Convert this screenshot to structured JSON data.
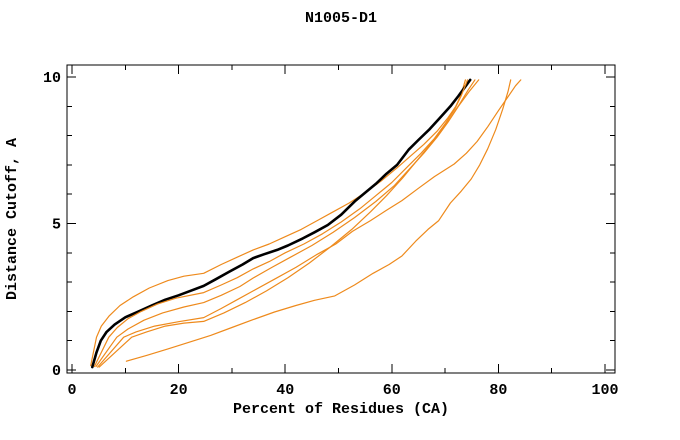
{
  "chart_data": {
    "type": "line",
    "title": "N1005-D1",
    "xlabel": "Percent of Residues (CA)",
    "ylabel": "Distance Cutoff, A",
    "xlim": [
      0,
      100
    ],
    "ylim": [
      0,
      10
    ],
    "x_major_ticks": [
      0,
      20,
      40,
      60,
      80,
      100
    ],
    "x_minor_ticks": [
      10,
      30,
      50,
      70,
      90
    ],
    "y_major_ticks": [
      0,
      5,
      10
    ],
    "y_minor_ticks": [
      1,
      2,
      3,
      4,
      6,
      7,
      8,
      9
    ],
    "grid": false,
    "legend_position": "none",
    "frame": "box-with-inward-ticks",
    "colors": {
      "highlight": "#000000",
      "default_series": "#ee8a1c"
    },
    "series": [
      {
        "name": "model-orange-3",
        "color": "#ee8a1c",
        "width": 1.2,
        "points": [
          [
            4.5,
            0.12
          ],
          [
            8.4,
            1.12
          ],
          [
            10.5,
            1.4
          ],
          [
            13.5,
            1.7
          ],
          [
            17,
            1.95
          ],
          [
            21,
            2.15
          ],
          [
            24.7,
            2.3
          ],
          [
            28,
            2.55
          ],
          [
            31.5,
            2.85
          ],
          [
            34,
            3.14
          ],
          [
            37.5,
            3.5
          ],
          [
            41,
            3.85
          ],
          [
            45,
            4.25
          ],
          [
            49,
            4.7
          ],
          [
            53,
            5.2
          ],
          [
            57,
            5.75
          ],
          [
            60.5,
            6.3
          ],
          [
            63.5,
            6.9
          ],
          [
            66,
            7.4
          ],
          [
            68.5,
            7.95
          ],
          [
            70.5,
            8.45
          ],
          [
            72.5,
            9.0
          ],
          [
            74.5,
            9.5
          ],
          [
            76.3,
            9.9
          ]
        ]
      },
      {
        "name": "model-orange-4",
        "color": "#ee8a1c",
        "width": 1.2,
        "points": [
          [
            4.8,
            0.1
          ],
          [
            9.7,
            1.12
          ],
          [
            12,
            1.3
          ],
          [
            15.5,
            1.5
          ],
          [
            20,
            1.65
          ],
          [
            24.7,
            1.79
          ],
          [
            28,
            2.1
          ],
          [
            31,
            2.4
          ],
          [
            34,
            2.7
          ],
          [
            38,
            3.1
          ],
          [
            42,
            3.5
          ],
          [
            46,
            3.95
          ],
          [
            49.5,
            4.3
          ],
          [
            52.6,
            4.73
          ],
          [
            56,
            5.1
          ],
          [
            59,
            5.45
          ],
          [
            61.9,
            5.78
          ],
          [
            65,
            6.2
          ],
          [
            68,
            6.6
          ],
          [
            71.7,
            7.03
          ],
          [
            74,
            7.4
          ],
          [
            76,
            7.8
          ],
          [
            78,
            8.3
          ],
          [
            80,
            8.85
          ],
          [
            81.7,
            9.3
          ],
          [
            83.2,
            9.7
          ],
          [
            84.2,
            9.9
          ]
        ]
      },
      {
        "name": "model-orange-5",
        "color": "#ee8a1c",
        "width": 1.2,
        "points": [
          [
            5.1,
            0.1
          ],
          [
            11.2,
            1.12
          ],
          [
            14,
            1.3
          ],
          [
            17.5,
            1.5
          ],
          [
            21,
            1.6
          ],
          [
            24.7,
            1.66
          ],
          [
            28.5,
            1.95
          ],
          [
            32.5,
            2.3
          ],
          [
            36.5,
            2.7
          ],
          [
            40.5,
            3.15
          ],
          [
            44.5,
            3.65
          ],
          [
            48.5,
            4.2
          ],
          [
            52.5,
            4.8
          ],
          [
            56,
            5.4
          ],
          [
            59,
            5.95
          ],
          [
            62,
            6.55
          ],
          [
            64.5,
            7.1
          ],
          [
            67,
            7.65
          ],
          [
            69,
            8.1
          ],
          [
            71,
            8.6
          ],
          [
            72.8,
            9.1
          ],
          [
            74.3,
            9.55
          ],
          [
            75.6,
            9.9
          ]
        ]
      },
      {
        "name": "model-orange-6",
        "color": "#ee8a1c",
        "width": 1.2,
        "points": [
          [
            10.2,
            0.3
          ],
          [
            14,
            0.5
          ],
          [
            18,
            0.72
          ],
          [
            22,
            0.95
          ],
          [
            26,
            1.18
          ],
          [
            30,
            1.45
          ],
          [
            34,
            1.72
          ],
          [
            38,
            1.98
          ],
          [
            42,
            2.2
          ],
          [
            45.5,
            2.38
          ],
          [
            49.3,
            2.53
          ],
          [
            53,
            2.9
          ],
          [
            56.5,
            3.3
          ],
          [
            59.5,
            3.6
          ],
          [
            61.9,
            3.89
          ],
          [
            64.5,
            4.4
          ],
          [
            66.8,
            4.8
          ],
          [
            68.8,
            5.1
          ],
          [
            71,
            5.7
          ],
          [
            73,
            6.1
          ],
          [
            74.9,
            6.52
          ],
          [
            76.5,
            7.0
          ],
          [
            78,
            7.55
          ],
          [
            79.5,
            8.2
          ],
          [
            80.8,
            8.9
          ],
          [
            81.8,
            9.5
          ],
          [
            82.3,
            9.9
          ]
        ]
      },
      {
        "name": "model-orange-1",
        "color": "#ee8a1c",
        "width": 1.2,
        "points": [
          [
            3.5,
            0.15
          ],
          [
            4.6,
            1.12
          ],
          [
            5.5,
            1.5
          ],
          [
            7,
            1.85
          ],
          [
            9,
            2.2
          ],
          [
            11.5,
            2.5
          ],
          [
            14.5,
            2.8
          ],
          [
            18,
            3.05
          ],
          [
            21,
            3.2
          ],
          [
            24.7,
            3.3
          ],
          [
            28,
            3.6
          ],
          [
            31,
            3.85
          ],
          [
            34,
            4.1
          ],
          [
            37,
            4.3
          ],
          [
            40,
            4.55
          ],
          [
            43,
            4.8
          ],
          [
            46,
            5.1
          ],
          [
            49,
            5.4
          ],
          [
            52,
            5.7
          ],
          [
            55,
            6.05
          ],
          [
            58,
            6.45
          ],
          [
            61,
            6.9
          ],
          [
            63.5,
            7.3
          ],
          [
            66,
            7.7
          ],
          [
            68.5,
            8.15
          ],
          [
            70.5,
            8.6
          ],
          [
            72,
            9.0
          ],
          [
            73,
            9.4
          ],
          [
            73.8,
            9.9
          ]
        ]
      },
      {
        "name": "model-highlighted",
        "color": "#000000",
        "width": 2.6,
        "points": [
          [
            3.8,
            0.1
          ],
          [
            4.6,
            0.6
          ],
          [
            5.4,
            1.0
          ],
          [
            6.5,
            1.3
          ],
          [
            8,
            1.55
          ],
          [
            10,
            1.8
          ],
          [
            12.5,
            2.0
          ],
          [
            15,
            2.2
          ],
          [
            17.5,
            2.4
          ],
          [
            20,
            2.55
          ],
          [
            22.5,
            2.72
          ],
          [
            24.7,
            2.87
          ],
          [
            27,
            3.1
          ],
          [
            29.5,
            3.35
          ],
          [
            32,
            3.6
          ],
          [
            34,
            3.82
          ],
          [
            36,
            3.95
          ],
          [
            38.5,
            4.1
          ],
          [
            40.5,
            4.25
          ],
          [
            43.3,
            4.49
          ],
          [
            45.5,
            4.7
          ],
          [
            48,
            4.95
          ],
          [
            50.5,
            5.3
          ],
          [
            53.2,
            5.78
          ],
          [
            55,
            6.05
          ],
          [
            57,
            6.35
          ],
          [
            59,
            6.7
          ],
          [
            61,
            7.0
          ],
          [
            63.2,
            7.53
          ],
          [
            65,
            7.85
          ],
          [
            67,
            8.2
          ],
          [
            69,
            8.6
          ],
          [
            71,
            9.0
          ],
          [
            72.5,
            9.35
          ],
          [
            73.7,
            9.65
          ],
          [
            74.7,
            9.9
          ]
        ]
      },
      {
        "name": "model-orange-2",
        "color": "#ee8a1c",
        "width": 1.2,
        "points": [
          [
            4.2,
            0.12
          ],
          [
            6.9,
            1.12
          ],
          [
            8.5,
            1.45
          ],
          [
            10.5,
            1.75
          ],
          [
            13,
            2.0
          ],
          [
            16,
            2.25
          ],
          [
            19.5,
            2.45
          ],
          [
            24.7,
            2.64
          ],
          [
            28,
            2.9
          ],
          [
            31,
            3.15
          ],
          [
            34,
            3.45
          ],
          [
            37,
            3.7
          ],
          [
            40,
            4.0
          ],
          [
            43.5,
            4.3
          ],
          [
            47,
            4.65
          ],
          [
            50.5,
            5.05
          ],
          [
            54,
            5.5
          ],
          [
            57,
            5.95
          ],
          [
            60,
            6.4
          ],
          [
            63,
            6.95
          ],
          [
            65.5,
            7.4
          ],
          [
            68,
            7.9
          ],
          [
            70,
            8.4
          ],
          [
            71.8,
            8.9
          ],
          [
            73,
            9.35
          ],
          [
            74.2,
            9.9
          ]
        ]
      }
    ]
  }
}
